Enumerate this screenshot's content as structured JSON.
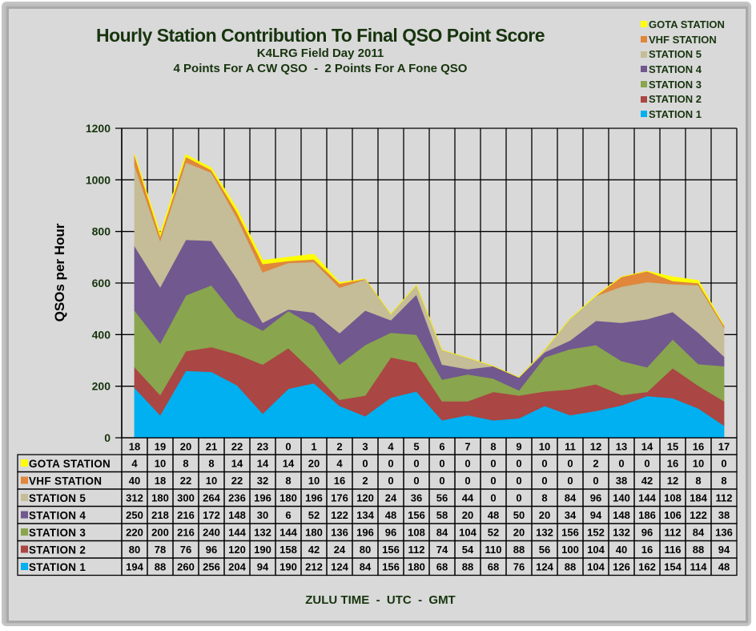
{
  "chart_data": {
    "type": "area",
    "stacked": true,
    "title": "Hourly Station Contribution To Final QSO Point Score",
    "subtitle": "K4LRG Field Day 2011",
    "subtitle2": "4 Points For A CW QSO  -  2 Points For A Fone QSO",
    "xlabel": "ZULU TIME  -  UTC  -  GMT",
    "ylabel": "QSOs per Hour",
    "ylim": [
      0,
      1200
    ],
    "yticks": [
      0,
      200,
      400,
      600,
      800,
      1000,
      1200
    ],
    "grid": true,
    "legend_position": "top-right",
    "categories": [
      "18",
      "19",
      "20",
      "21",
      "22",
      "23",
      "0",
      "1",
      "2",
      "3",
      "4",
      "5",
      "6",
      "7",
      "8",
      "9",
      "10",
      "11",
      "12",
      "13",
      "14",
      "15",
      "16",
      "17"
    ],
    "series": [
      {
        "name": "STATION 1",
        "color": "#00b0f0",
        "values": [
          194,
          88,
          260,
          256,
          204,
          94,
          190,
          212,
          124,
          84,
          156,
          180,
          68,
          88,
          68,
          76,
          124,
          88,
          104,
          126,
          162,
          154,
          114,
          48
        ]
      },
      {
        "name": "STATION 2",
        "color": "#aa4643",
        "values": [
          80,
          78,
          76,
          96,
          120,
          190,
          158,
          42,
          24,
          80,
          156,
          112,
          74,
          54,
          110,
          88,
          56,
          100,
          104,
          40,
          16,
          116,
          88,
          94
        ]
      },
      {
        "name": "STATION 3",
        "color": "#89a54e",
        "values": [
          220,
          200,
          216,
          240,
          144,
          132,
          144,
          180,
          136,
          196,
          96,
          108,
          84,
          104,
          52,
          20,
          132,
          156,
          152,
          132,
          96,
          112,
          84,
          136
        ]
      },
      {
        "name": "STATION 4",
        "color": "#71588f",
        "values": [
          250,
          218,
          216,
          172,
          148,
          30,
          6,
          52,
          122,
          134,
          48,
          156,
          58,
          20,
          48,
          50,
          20,
          34,
          94,
          148,
          186,
          106,
          122,
          38
        ]
      },
      {
        "name": "STATION 5",
        "color": "#c4bd97",
        "values": [
          312,
          180,
          300,
          264,
          236,
          196,
          180,
          196,
          176,
          120,
          24,
          36,
          56,
          44,
          0,
          0,
          8,
          84,
          96,
          140,
          144,
          108,
          184,
          112
        ]
      },
      {
        "name": "VHF STATION",
        "color": "#e0873c",
        "values": [
          40,
          18,
          22,
          10,
          22,
          32,
          8,
          10,
          16,
          2,
          0,
          0,
          0,
          0,
          0,
          0,
          0,
          0,
          0,
          38,
          42,
          12,
          8,
          8
        ]
      },
      {
        "name": "GOTA STATION",
        "color": "#ffff00",
        "values": [
          4,
          10,
          8,
          8,
          14,
          14,
          14,
          20,
          4,
          0,
          0,
          0,
          0,
          0,
          0,
          0,
          0,
          0,
          2,
          0,
          0,
          16,
          10,
          0
        ]
      }
    ],
    "table_row_order": [
      "GOTA STATION",
      "VHF STATION",
      "STATION 5",
      "STATION 4",
      "STATION 3",
      "STATION 2",
      "STATION 1"
    ],
    "legend_order": [
      "GOTA STATION",
      "VHF STATION",
      "STATION 5",
      "STATION 4",
      "STATION 3",
      "STATION 2",
      "STATION 1"
    ]
  }
}
